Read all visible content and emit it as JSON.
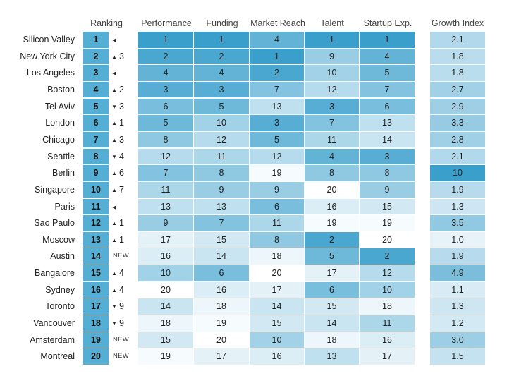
{
  "chart_data": {
    "type": "table",
    "columns": {
      "ranking": "Ranking",
      "metrics": [
        "Performance",
        "Funding",
        "Market Reach",
        "Talent",
        "Startup Exp."
      ],
      "growth": "Growth Index"
    },
    "rows": [
      {
        "city": "Silicon Valley",
        "rank": 1,
        "change": {
          "dir": "same",
          "value": ""
        },
        "metrics": [
          1,
          1,
          4,
          1,
          1
        ],
        "growth": "2.1"
      },
      {
        "city": "New York City",
        "rank": 2,
        "change": {
          "dir": "up",
          "value": "3"
        },
        "metrics": [
          2,
          2,
          1,
          9,
          4
        ],
        "growth": "1.8"
      },
      {
        "city": "Los Angeles",
        "rank": 3,
        "change": {
          "dir": "same",
          "value": ""
        },
        "metrics": [
          4,
          4,
          2,
          10,
          5
        ],
        "growth": "1.8"
      },
      {
        "city": "Boston",
        "rank": 4,
        "change": {
          "dir": "up",
          "value": "2"
        },
        "metrics": [
          3,
          3,
          7,
          12,
          7
        ],
        "growth": "2.7"
      },
      {
        "city": "Tel Aviv",
        "rank": 5,
        "change": {
          "dir": "down",
          "value": "3"
        },
        "metrics": [
          6,
          5,
          13,
          3,
          6
        ],
        "growth": "2.9"
      },
      {
        "city": "London",
        "rank": 6,
        "change": {
          "dir": "up",
          "value": "1"
        },
        "metrics": [
          5,
          10,
          3,
          7,
          13
        ],
        "growth": "3.3"
      },
      {
        "city": "Chicago",
        "rank": 7,
        "change": {
          "dir": "up",
          "value": "3"
        },
        "metrics": [
          8,
          12,
          5,
          11,
          14
        ],
        "growth": "2.8"
      },
      {
        "city": "Seattle",
        "rank": 8,
        "change": {
          "dir": "down",
          "value": "4"
        },
        "metrics": [
          12,
          11,
          12,
          4,
          3
        ],
        "growth": "2.1"
      },
      {
        "city": "Berlin",
        "rank": 9,
        "change": {
          "dir": "up",
          "value": "6"
        },
        "metrics": [
          7,
          8,
          19,
          8,
          8
        ],
        "growth": "10"
      },
      {
        "city": "Singapore",
        "rank": 10,
        "change": {
          "dir": "up",
          "value": "7"
        },
        "metrics": [
          11,
          9,
          9,
          20,
          9
        ],
        "growth": "1.9"
      },
      {
        "city": "Paris",
        "rank": 11,
        "change": {
          "dir": "same",
          "value": ""
        },
        "metrics": [
          13,
          13,
          6,
          16,
          15
        ],
        "growth": "1.3"
      },
      {
        "city": "Sao Paulo",
        "rank": 12,
        "change": {
          "dir": "up",
          "value": "1"
        },
        "metrics": [
          9,
          7,
          11,
          19,
          19
        ],
        "growth": "3.5"
      },
      {
        "city": "Moscow",
        "rank": 13,
        "change": {
          "dir": "up",
          "value": "1"
        },
        "metrics": [
          17,
          15,
          8,
          2,
          20
        ],
        "growth": "1.0"
      },
      {
        "city": "Austin",
        "rank": 14,
        "change": {
          "dir": "new",
          "value": "NEW"
        },
        "metrics": [
          16,
          14,
          18,
          5,
          2
        ],
        "growth": "1.9"
      },
      {
        "city": "Bangalore",
        "rank": 15,
        "change": {
          "dir": "up",
          "value": "4"
        },
        "metrics": [
          10,
          6,
          20,
          17,
          12
        ],
        "growth": "4.9"
      },
      {
        "city": "Sydney",
        "rank": 16,
        "change": {
          "dir": "up",
          "value": "4"
        },
        "metrics": [
          20,
          16,
          17,
          6,
          10
        ],
        "growth": "1.1"
      },
      {
        "city": "Toronto",
        "rank": 17,
        "change": {
          "dir": "down",
          "value": "9"
        },
        "metrics": [
          14,
          18,
          14,
          15,
          18
        ],
        "growth": "1.3"
      },
      {
        "city": "Vancouver",
        "rank": 18,
        "change": {
          "dir": "down",
          "value": "9"
        },
        "metrics": [
          18,
          19,
          15,
          14,
          11
        ],
        "growth": "1.2"
      },
      {
        "city": "Amsterdam",
        "rank": 19,
        "change": {
          "dir": "new",
          "value": "NEW"
        },
        "metrics": [
          15,
          20,
          10,
          18,
          16
        ],
        "growth": "3.0"
      },
      {
        "city": "Montreal",
        "rank": 20,
        "change": {
          "dir": "new",
          "value": "NEW"
        },
        "metrics": [
          19,
          17,
          16,
          13,
          17
        ],
        "growth": "1.5"
      }
    ],
    "colors": {
      "best": "#3a9fcb",
      "worst": "#ffffff",
      "rank_cell": "#55aed4",
      "growth_low": "#e8f3f9",
      "growth_high": "#3a9fcb",
      "arrow": "#222222"
    }
  }
}
